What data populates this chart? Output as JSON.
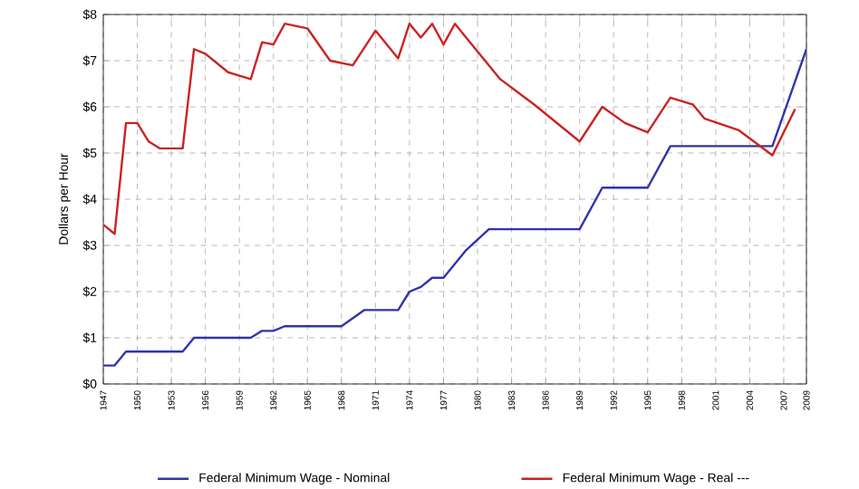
{
  "chart_data": {
    "type": "line",
    "ylabel": "Dollars per Hour",
    "xlim": [
      1947,
      2009
    ],
    "xticks": [
      1947,
      1950,
      1953,
      1956,
      1959,
      1962,
      1965,
      1968,
      1971,
      1974,
      1977,
      1980,
      1983,
      1986,
      1989,
      1992,
      1995,
      1998,
      2001,
      2004,
      2007,
      2009
    ],
    "ylim": [
      0,
      8
    ],
    "yticks": [
      {
        "value": 0,
        "label": "$0"
      },
      {
        "value": 1,
        "label": "$1"
      },
      {
        "value": 2,
        "label": "$2"
      },
      {
        "value": 3,
        "label": "$3"
      },
      {
        "value": 4,
        "label": "$4"
      },
      {
        "value": 5,
        "label": "$5"
      },
      {
        "value": 6,
        "label": "$6"
      },
      {
        "value": 7,
        "label": "$7"
      },
      {
        "value": 8,
        "label": "$8"
      }
    ],
    "grid": true,
    "legend": "bottom",
    "series": [
      {
        "name": "Federal Minimum Wage - Nominal",
        "color": "#3333aa",
        "x": [
          1947,
          1948,
          1949,
          1954,
          1955,
          1960,
          1961,
          1962,
          1963,
          1968,
          1970,
          1973,
          1974,
          1975,
          1976,
          1977,
          1979,
          1981,
          1989,
          1991,
          1995,
          1997,
          2006,
          2009
        ],
        "values": [
          0.4,
          0.4,
          0.7,
          0.7,
          1.0,
          1.0,
          1.15,
          1.15,
          1.25,
          1.25,
          1.6,
          1.6,
          2.0,
          2.1,
          2.3,
          2.3,
          2.9,
          3.35,
          3.35,
          4.25,
          4.25,
          5.15,
          5.15,
          7.25
        ]
      },
      {
        "name": "Federal Minimum Wage - Real ---",
        "color": "#cc2222",
        "x": [
          1947,
          1948,
          1949,
          1950,
          1951,
          1952,
          1954,
          1955,
          1956,
          1958,
          1960,
          1961,
          1962,
          1963,
          1965,
          1966,
          1967,
          1969,
          1971,
          1973,
          1974,
          1975,
          1976,
          1977,
          1978,
          1980,
          1982,
          1985,
          1989,
          1991,
          1993,
          1995,
          1997,
          1999,
          2000,
          2003,
          2006,
          2008
        ],
        "values": [
          3.45,
          3.25,
          5.65,
          5.65,
          5.25,
          5.1,
          5.1,
          7.25,
          7.15,
          6.75,
          6.6,
          7.4,
          7.35,
          7.8,
          7.7,
          7.35,
          7.0,
          6.9,
          7.65,
          7.05,
          7.8,
          7.5,
          7.8,
          7.35,
          7.8,
          7.2,
          6.6,
          6.05,
          5.25,
          6.0,
          5.65,
          5.45,
          6.2,
          6.05,
          5.75,
          5.5,
          4.95,
          5.95
        ]
      }
    ]
  }
}
